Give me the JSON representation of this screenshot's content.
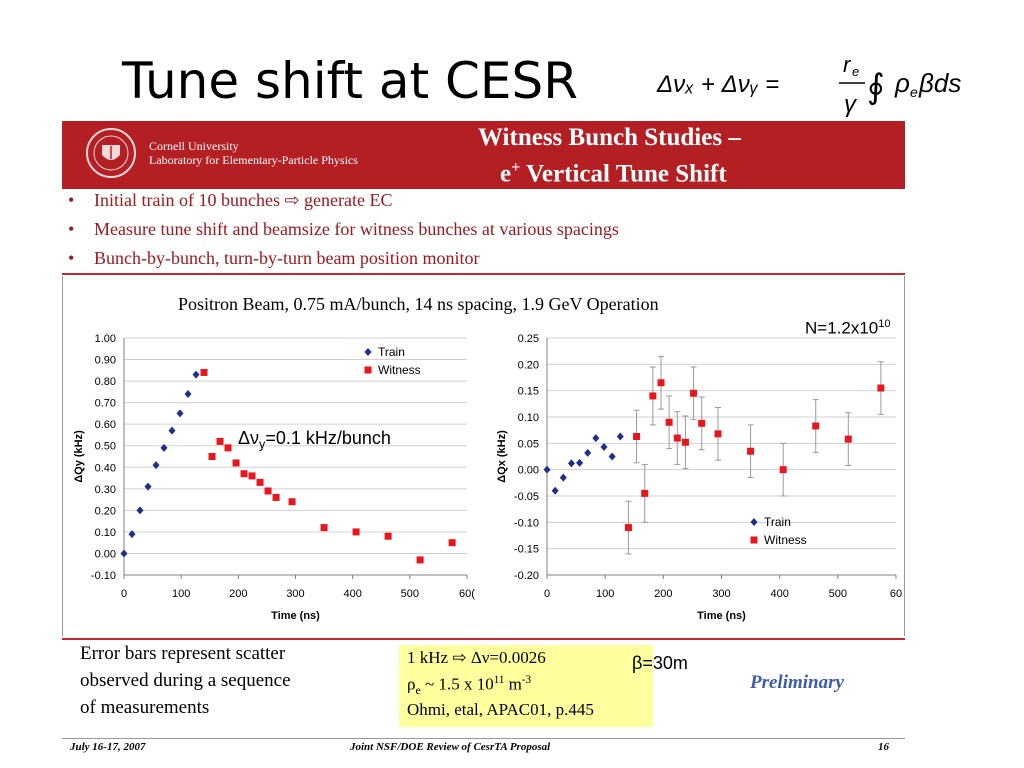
{
  "slide": {
    "title": "Tune shift at CESR",
    "formula": {
      "lhs": "Δνₓ + Δνᵧ =",
      "numerator": "r",
      "numerator_sub": "e",
      "denominator": "γ",
      "integral": "∮",
      "rho": "ρ",
      "rho_sub": "e",
      "tail": "βds"
    }
  },
  "banner": {
    "university": "Cornell University",
    "lab": "Laboratory for Elementary-Particle Physics",
    "heading_line1": "Witness Bunch Studies –",
    "heading_line2_prefix": "e",
    "heading_line2_sup": "+",
    "heading_line2_rest": " Vertical Tune Shift",
    "background_color": "#b41f24"
  },
  "bullets": [
    "Initial train of 10 bunches ⇨ generate EC",
    "Measure tune shift and beamsize for witness bunches at various spacings",
    "Bunch-by-bunch, turn-by-turn beam position monitor"
  ],
  "bullet_color": "#a0171c",
  "chart_title": "Positron Beam, 0.75 mA/bunch, 14 ns spacing, 1.9 GeV Operation",
  "annotations": {
    "n_label": "N=1.2x10",
    "n_sup": "10",
    "dnu_prefix": "Δν",
    "dnu_sub": "y",
    "dnu_rest": "=0.1 kHz/bunch",
    "beta": "β=30m",
    "preliminary": "Preliminary"
  },
  "footnote": {
    "lines": [
      "Error bars represent scatter",
      "observed during a sequence",
      "of measurements"
    ]
  },
  "yellow_box": {
    "line1": "1 kHz ⇨ Δν=0.0026",
    "line2_rho": "ρ",
    "line2_sub": "e",
    "line2_mid": " ~ 1.5 x 10",
    "line2_sup": "11",
    "line2_unit": " m",
    "line2_unit_sup": "-3",
    "line3": "Ohmi, etal, APAC01, p.445",
    "color": "#ffff9e"
  },
  "footer": {
    "date": "July 16-17, 2007",
    "center": "Joint NSF/DOE Review of CesrTA Proposal",
    "page": "16"
  },
  "chart_data": [
    {
      "type": "scatter",
      "ylabel": "ΔQy (kHz)",
      "xlabel": "Time (ns)",
      "xlim": [
        0,
        600
      ],
      "ylim": [
        -0.1,
        1.0
      ],
      "x_ticks": [
        "0",
        "100",
        "200",
        "300",
        "400",
        "500",
        "60("
      ],
      "y_ticks": [
        "-0.10",
        "0.00",
        "0.10",
        "0.20",
        "0.30",
        "0.40",
        "0.50",
        "0.60",
        "0.70",
        "0.80",
        "0.90",
        "1.00"
      ],
      "grid": "horizontal",
      "legend": "top-right",
      "series": [
        {
          "name": "Train",
          "color": "#1c2f8c",
          "marker": "diamond",
          "x": [
            0,
            14,
            28,
            42,
            56,
            70,
            84,
            98,
            112,
            126
          ],
          "y": [
            0.0,
            0.09,
            0.2,
            0.31,
            0.41,
            0.49,
            0.57,
            0.65,
            0.74,
            0.83
          ]
        },
        {
          "name": "Witness",
          "color": "#e8161d",
          "marker": "square",
          "x": [
            140,
            154,
            168,
            182,
            196,
            210,
            224,
            238,
            252,
            266,
            294,
            350,
            406,
            462,
            518,
            574
          ],
          "y": [
            0.84,
            0.45,
            0.52,
            0.49,
            0.42,
            0.37,
            0.36,
            0.33,
            0.29,
            0.26,
            0.24,
            0.12,
            0.1,
            0.08,
            -0.03,
            0.05
          ]
        }
      ]
    },
    {
      "type": "scatter",
      "ylabel": "ΔQx (kHz)",
      "xlabel": "Time (ns)",
      "xlim": [
        0,
        600
      ],
      "ylim": [
        -0.2,
        0.25
      ],
      "x_ticks": [
        "0",
        "100",
        "200",
        "300",
        "400",
        "500",
        "60"
      ],
      "y_ticks": [
        "-0.20",
        "-0.15",
        "-0.10",
        "-0.05",
        "0.00",
        "0.05",
        "0.10",
        "0.15",
        "0.20",
        "0.25"
      ],
      "grid": "horizontal",
      "legend": "bottom-right",
      "series": [
        {
          "name": "Train",
          "color": "#1c2f8c",
          "marker": "diamond",
          "x": [
            0,
            14,
            28,
            42,
            56,
            70,
            84,
            98,
            112,
            126
          ],
          "y": [
            0.0,
            -0.04,
            -0.015,
            0.012,
            0.013,
            0.032,
            0.06,
            0.043,
            0.025,
            0.063
          ]
        },
        {
          "name": "Witness",
          "color": "#e8161d",
          "marker": "square",
          "x": [
            140,
            154,
            168,
            182,
            196,
            210,
            224,
            238,
            252,
            266,
            294,
            350,
            406,
            462,
            518,
            574
          ],
          "y": [
            -0.11,
            0.063,
            -0.045,
            0.14,
            0.165,
            0.09,
            0.06,
            0.052,
            0.145,
            0.088,
            0.068,
            0.035,
            0.0,
            0.083,
            0.058,
            0.155
          ],
          "error": [
            0.05,
            0.05,
            0.055,
            0.055,
            0.05,
            0.05,
            0.05,
            0.05,
            0.05,
            0.05,
            0.05,
            0.05,
            0.05,
            0.05,
            0.05,
            0.05
          ]
        }
      ]
    }
  ]
}
